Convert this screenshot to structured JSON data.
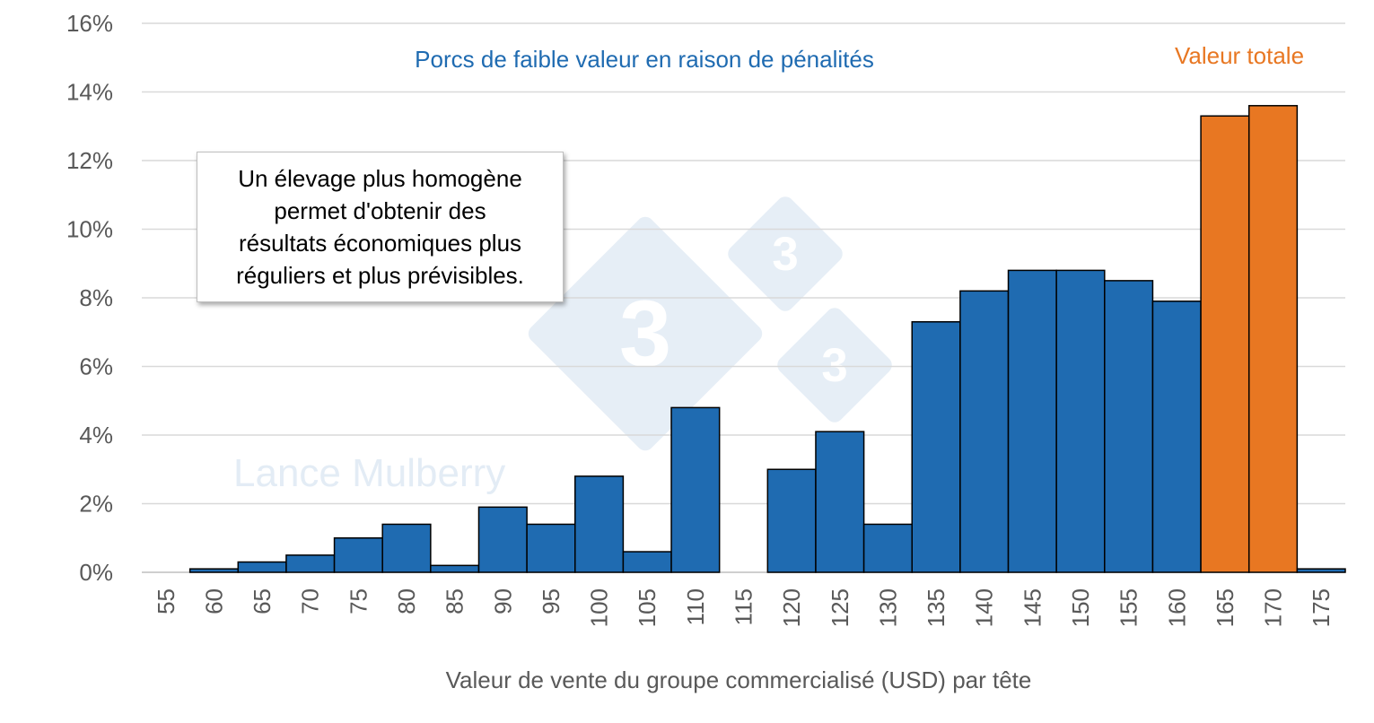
{
  "chart_data": {
    "type": "bar",
    "categories": [
      "55",
      "60",
      "65",
      "70",
      "75",
      "80",
      "85",
      "90",
      "95",
      "100",
      "105",
      "110",
      "115",
      "120",
      "125",
      "130",
      "135",
      "140",
      "145",
      "150",
      "155",
      "160",
      "165",
      "170",
      "175"
    ],
    "series": [
      {
        "values": [
          0,
          0.1,
          0.3,
          0.5,
          1.0,
          1.4,
          0.2,
          1.9,
          1.4,
          2.8,
          0.6,
          4.8,
          0,
          3.0,
          4.1,
          1.4,
          7.3,
          8.2,
          8.8,
          8.8,
          8.5,
          7.9,
          13.3,
          13.6,
          0.1
        ]
      }
    ],
    "highlight_categories": [
      "165",
      "170"
    ],
    "colors": {
      "main": "#1f6bb1",
      "highlight": "#e87722",
      "grid": "#d9d9d9"
    },
    "ylim": [
      0,
      16
    ],
    "yticks": [
      "0%",
      "2%",
      "4%",
      "6%",
      "8%",
      "10%",
      "12%",
      "14%",
      "16%"
    ],
    "xlabel": "Valeur de vente du groupe commercialisé (USD) par tête",
    "annotations": {
      "low_value": "Porcs de faible valeur en raison de pénalités",
      "total_value": "Valeur totale",
      "note_lines": [
        "Un élevage plus homogène",
        "permet d'obtenir des",
        "résultats économiques plus",
        "réguliers et plus prévisibles."
      ]
    },
    "watermark": {
      "text": "Lance Mulberry",
      "logo_digit": "3"
    },
    "grid": true
  }
}
